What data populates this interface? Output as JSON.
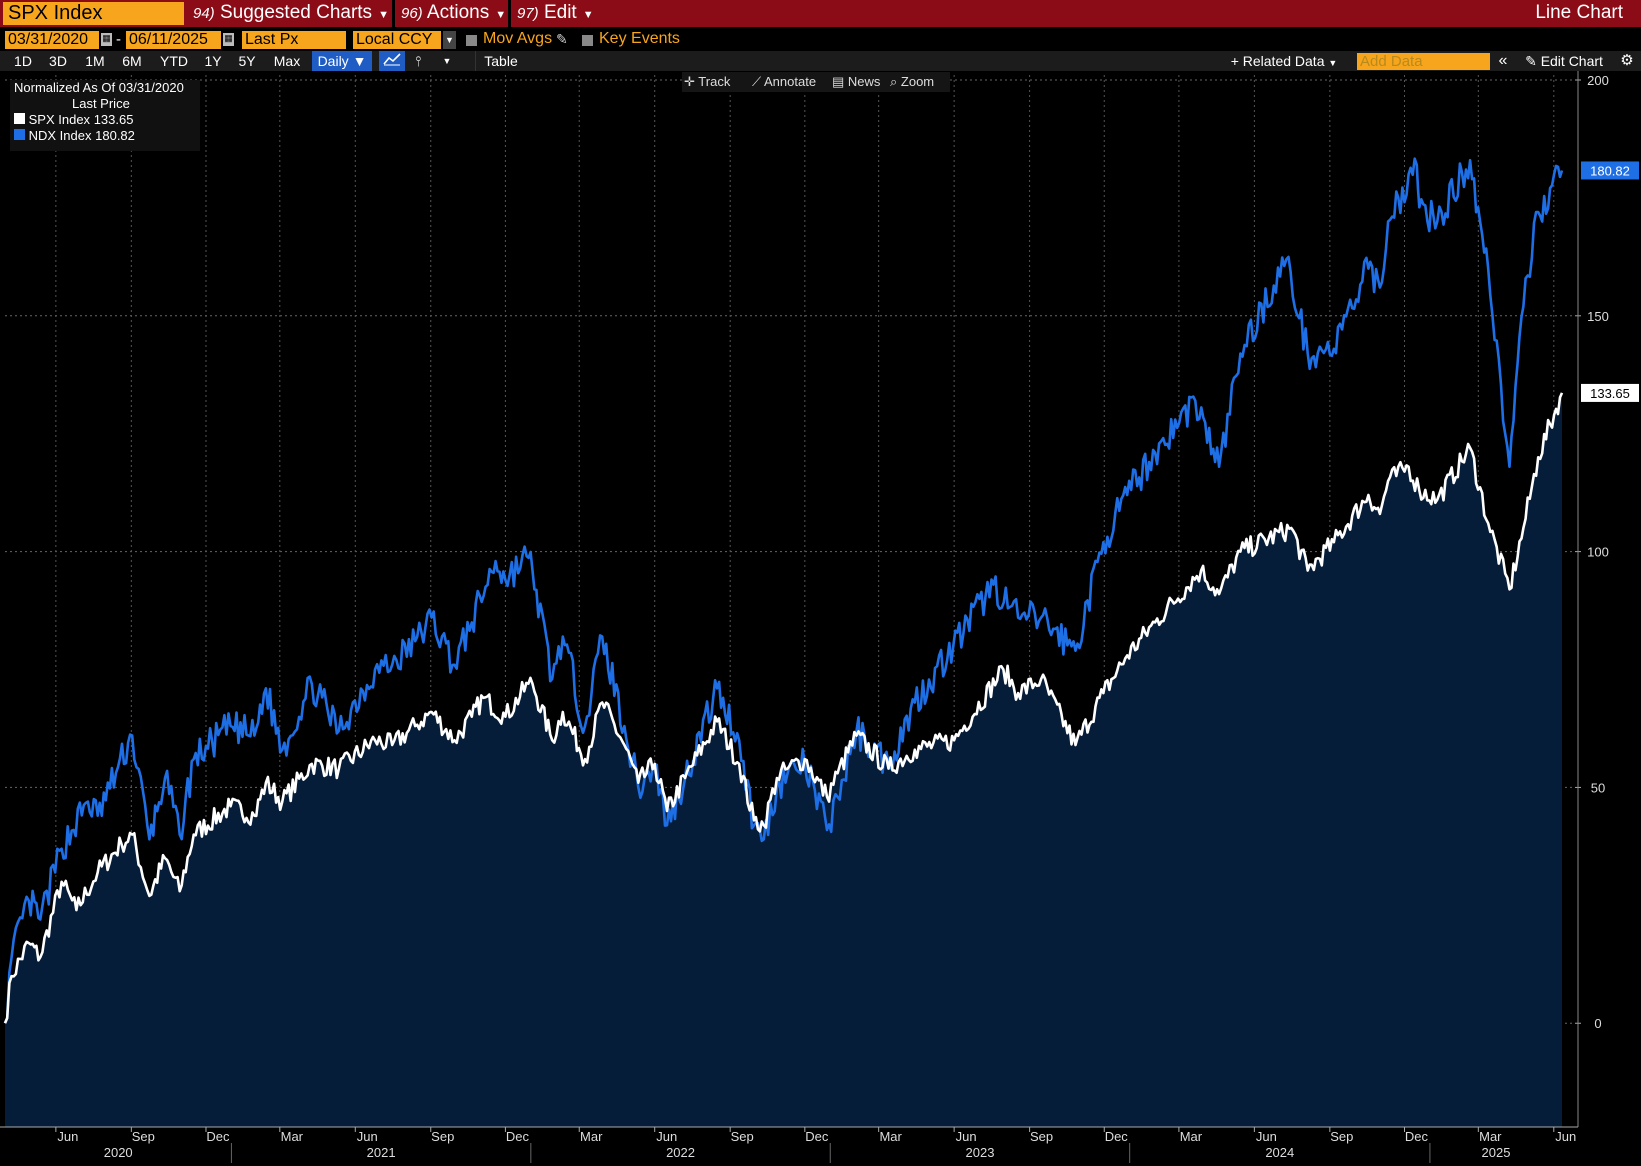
{
  "header": {
    "ticker": "SPX Index",
    "menus": [
      {
        "num": "94)",
        "label": "Suggested Charts"
      },
      {
        "num": "96)",
        "label": "Actions"
      },
      {
        "num": "97)",
        "label": "Edit"
      }
    ],
    "title": "Line Chart"
  },
  "settings": {
    "start_date": "03/31/2020",
    "end_date": "06/11/2025",
    "field": "Last Px",
    "currency": "Local CCY",
    "mov_avgs": "Mov Avgs",
    "key_events": "Key Events"
  },
  "toolbar": {
    "periods": [
      "1D",
      "3D",
      "1M",
      "6M",
      "YTD",
      "1Y",
      "5Y",
      "Max"
    ],
    "frequency": "Daily",
    "table": "Table",
    "related_data": "Related Data",
    "add_data_placeholder": "Add Data",
    "edit_chart": "Edit Chart"
  },
  "chart_controls": [
    "Track",
    "Annotate",
    "News",
    "Zoom"
  ],
  "legend": {
    "header1": "Normalized As Of 03/31/2020",
    "header2": "Last Price",
    "series": [
      {
        "name": "SPX Index",
        "value": "133.65",
        "color": "#ffffff"
      },
      {
        "name": "NDX Index",
        "value": "180.82",
        "color": "#1e6fe6"
      }
    ]
  },
  "chart_data": {
    "type": "line",
    "title": "",
    "ylim": [
      -22,
      200
    ],
    "y_ticks": [
      0,
      50,
      100,
      150,
      200
    ],
    "x_month_labels": [
      "Jun",
      "Sep",
      "Dec",
      "Mar",
      "Jun",
      "Sep",
      "Dec",
      "Mar",
      "Jun",
      "Sep",
      "Dec",
      "Mar",
      "Jun",
      "Sep",
      "Dec",
      "Mar",
      "Jun",
      "Sep",
      "Dec",
      "Mar",
      "Jun"
    ],
    "x_year_labels": [
      "2020",
      "2021",
      "2022",
      "2023",
      "2024",
      "2025"
    ],
    "series": [
      {
        "name": "SPX Index",
        "color": "#ffffff",
        "last": "133.65",
        "points": [
          [
            "2020-03-31",
            0
          ],
          [
            "2020-04-08",
            10
          ],
          [
            "2020-04-29",
            17
          ],
          [
            "2020-05-13",
            14
          ],
          [
            "2020-06-08",
            30
          ],
          [
            "2020-06-26",
            24
          ],
          [
            "2020-07-22",
            32
          ],
          [
            "2020-08-20",
            38
          ],
          [
            "2020-09-02",
            40
          ],
          [
            "2020-09-23",
            27
          ],
          [
            "2020-10-12",
            35
          ],
          [
            "2020-10-30",
            28
          ],
          [
            "2020-11-16",
            40
          ],
          [
            "2020-12-31",
            46
          ],
          [
            "2021-01-29",
            44
          ],
          [
            "2021-02-12",
            51
          ],
          [
            "2021-03-04",
            47
          ],
          [
            "2021-04-09",
            55
          ],
          [
            "2021-05-12",
            54
          ],
          [
            "2021-06-25",
            60
          ],
          [
            "2021-07-16",
            59
          ],
          [
            "2021-08-13",
            63
          ],
          [
            "2021-09-02",
            66
          ],
          [
            "2021-09-30",
            60
          ],
          [
            "2021-10-21",
            65
          ],
          [
            "2021-11-04",
            69
          ],
          [
            "2021-12-01",
            65
          ],
          [
            "2021-12-29",
            72
          ],
          [
            "2022-01-03",
            72
          ],
          [
            "2022-01-27",
            60
          ],
          [
            "2022-02-09",
            66
          ],
          [
            "2022-03-08",
            56
          ],
          [
            "2022-03-29",
            68
          ],
          [
            "2022-04-25",
            59
          ],
          [
            "2022-05-12",
            51
          ],
          [
            "2022-06-01",
            55
          ],
          [
            "2022-06-16",
            45
          ],
          [
            "2022-07-08",
            52
          ],
          [
            "2022-08-16",
            64
          ],
          [
            "2022-09-12",
            55
          ],
          [
            "2022-09-30",
            43
          ],
          [
            "2022-10-12",
            42
          ],
          [
            "2022-10-28",
            52
          ],
          [
            "2022-11-10",
            54
          ],
          [
            "2022-12-01",
            56
          ],
          [
            "2022-12-28",
            48
          ],
          [
            "2023-01-10",
            53
          ],
          [
            "2023-02-02",
            61
          ],
          [
            "2023-03-13",
            54
          ],
          [
            "2023-04-14",
            58
          ],
          [
            "2023-06-01",
            60
          ],
          [
            "2023-07-31",
            75
          ],
          [
            "2023-08-18",
            70
          ],
          [
            "2023-09-15",
            73
          ],
          [
            "2023-10-27",
            59
          ],
          [
            "2023-11-30",
            70
          ],
          [
            "2023-12-29",
            78
          ],
          [
            "2024-02-01",
            85
          ],
          [
            "2024-03-28",
            96
          ],
          [
            "2024-04-19",
            91
          ],
          [
            "2024-05-15",
            100
          ],
          [
            "2024-07-16,",
            105
          ],
          [
            "2024-08-05",
            96
          ],
          [
            "2024-09-06",
            102
          ],
          [
            "2024-10-18",
            112
          ],
          [
            "2024-11-01",
            108
          ],
          [
            "2024-11-11",
            115
          ],
          [
            "2024-12-06",
            118
          ],
          [
            "2024-12-19",
            113
          ],
          [
            "2025-01-10",
            111
          ],
          [
            "2025-02-19",
            122
          ],
          [
            "2025-03-13",
            106
          ],
          [
            "2025-04-08",
            92
          ],
          [
            "2025-04-25",
            105
          ],
          [
            "2025-05-13",
            120
          ],
          [
            "2025-06-11",
            133.65
          ]
        ]
      },
      {
        "name": "NDX Index",
        "color": "#1e6fe6",
        "last": "180.82",
        "points": [
          [
            "2020-03-31",
            0
          ],
          [
            "2020-04-08",
            14
          ],
          [
            "2020-04-29",
            26
          ],
          [
            "2020-05-13",
            22
          ],
          [
            "2020-06-08",
            37
          ],
          [
            "2020-07-10",
            47
          ],
          [
            "2020-07-22",
            44
          ],
          [
            "2020-09-02",
            61
          ],
          [
            "2020-09-23",
            39
          ],
          [
            "2020-10-12",
            52
          ],
          [
            "2020-10-30",
            40
          ],
          [
            "2020-11-16",
            56
          ],
          [
            "2020-12-31",
            63
          ],
          [
            "2021-01-29",
            61
          ],
          [
            "2021-02-12",
            71
          ],
          [
            "2021-03-04",
            58
          ],
          [
            "2021-04-09",
            72
          ],
          [
            "2021-05-12",
            62
          ],
          [
            "2021-06-25",
            75
          ],
          [
            "2021-07-16",
            76
          ],
          [
            "2021-08-13",
            81
          ],
          [
            "2021-09-02",
            86
          ],
          [
            "2021-09-30",
            76
          ],
          [
            "2021-10-21",
            85
          ],
          [
            "2021-11-19",
            98
          ],
          [
            "2021-12-01",
            94
          ],
          [
            "2021-12-27",
            99
          ],
          [
            "2022-01-03",
            96
          ],
          [
            "2022-01-27",
            73
          ],
          [
            "2022-02-09",
            82
          ],
          [
            "2022-03-08",
            63
          ],
          [
            "2022-03-29",
            82
          ],
          [
            "2022-04-25",
            63
          ],
          [
            "2022-05-12",
            50
          ],
          [
            "2022-06-01",
            55
          ],
          [
            "2022-06-16",
            42
          ],
          [
            "2022-07-08",
            52
          ],
          [
            "2022-08-16",
            71
          ],
          [
            "2022-09-12",
            60
          ],
          [
            "2022-09-30",
            42
          ],
          [
            "2022-10-12",
            39
          ],
          [
            "2022-10-28",
            50
          ],
          [
            "2022-11-10",
            53
          ],
          [
            "2022-12-01",
            55
          ],
          [
            "2022-12-28",
            41
          ],
          [
            "2023-01-10",
            48
          ],
          [
            "2023-02-02",
            62
          ],
          [
            "2023-03-13",
            55
          ],
          [
            "2023-04-14",
            68
          ],
          [
            "2023-05-31",
            80
          ],
          [
            "2023-07-19",
            93
          ],
          [
            "2023-08-18",
            86
          ],
          [
            "2023-09-15",
            86
          ],
          [
            "2023-10-27",
            79
          ],
          [
            "2023-11-30",
            102
          ],
          [
            "2023-12-29",
            112
          ],
          [
            "2024-02-01",
            121
          ],
          [
            "2024-03-21",
            132
          ],
          [
            "2024-04-19",
            118
          ],
          [
            "2024-05-15",
            142
          ],
          [
            "2024-07-10",
            162
          ],
          [
            "2024-08-05",
            142
          ],
          [
            "2024-09-06",
            143
          ],
          [
            "2024-10-18",
            160
          ],
          [
            "2024-11-01",
            156
          ],
          [
            "2024-11-11",
            170
          ],
          [
            "2024-12-16",
            182
          ],
          [
            "2024-12-19",
            173
          ],
          [
            "2025-01-10",
            170
          ],
          [
            "2025-02-19",
            183
          ],
          [
            "2025-03-13",
            160
          ],
          [
            "2025-04-08",
            118
          ],
          [
            "2025-04-25",
            152
          ],
          [
            "2025-05-13",
            172
          ],
          [
            "2025-06-11",
            180.82
          ]
        ]
      }
    ]
  }
}
